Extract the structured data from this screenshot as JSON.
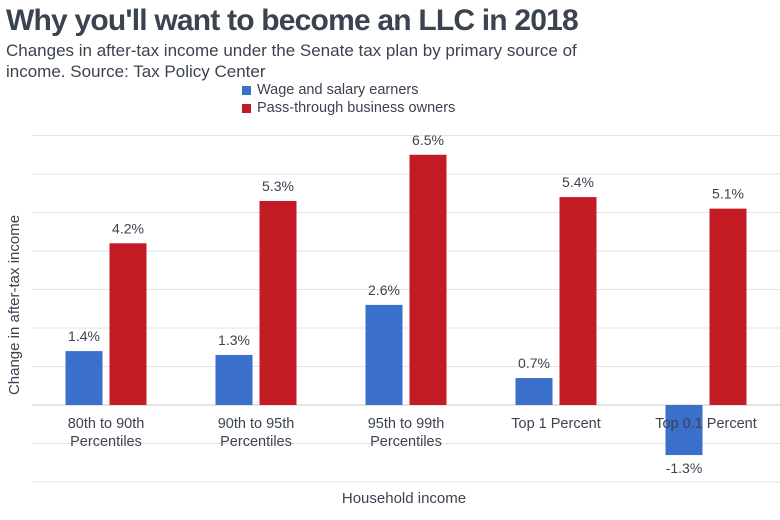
{
  "title": "Why you'll want to become an LLC in 2018",
  "subtitle": "Changes in after-tax income under the Senate tax plan by primary source of income. Source: Tax Policy Center",
  "colors": {
    "wage": "#3a6fcc",
    "pass": "#c21b23",
    "grid": "#e3e3e3"
  },
  "chart_data": {
    "type": "bar",
    "title": "Why you'll want to become an LLC in 2018",
    "subtitle": "Changes in after-tax income under the Senate tax plan by primary source of income. Source: Tax Policy Center",
    "xlabel": "Household income",
    "ylabel": "Change in after-tax income",
    "categories": [
      [
        "80th to 90th",
        "Percentiles"
      ],
      [
        "90th to 95th",
        "Percentiles"
      ],
      [
        "95th to 99th",
        "Percentiles"
      ],
      [
        "Top 1 Percent"
      ],
      [
        "Top 0.1 Percent"
      ]
    ],
    "series": [
      {
        "name": "Wage and salary earners",
        "values": [
          1.4,
          1.3,
          2.6,
          0.7,
          -1.3
        ],
        "labels": [
          "1.4%",
          "1.3%",
          "2.6%",
          "0.7%",
          "-1.3%"
        ]
      },
      {
        "name": "Pass-through business owners",
        "values": [
          4.2,
          5.3,
          6.5,
          5.4,
          5.1
        ],
        "labels": [
          "4.2%",
          "5.3%",
          "6.5%",
          "5.4%",
          "5.1%"
        ]
      }
    ],
    "ylim": [
      -2,
      7
    ],
    "grid": true,
    "legend": "top"
  }
}
